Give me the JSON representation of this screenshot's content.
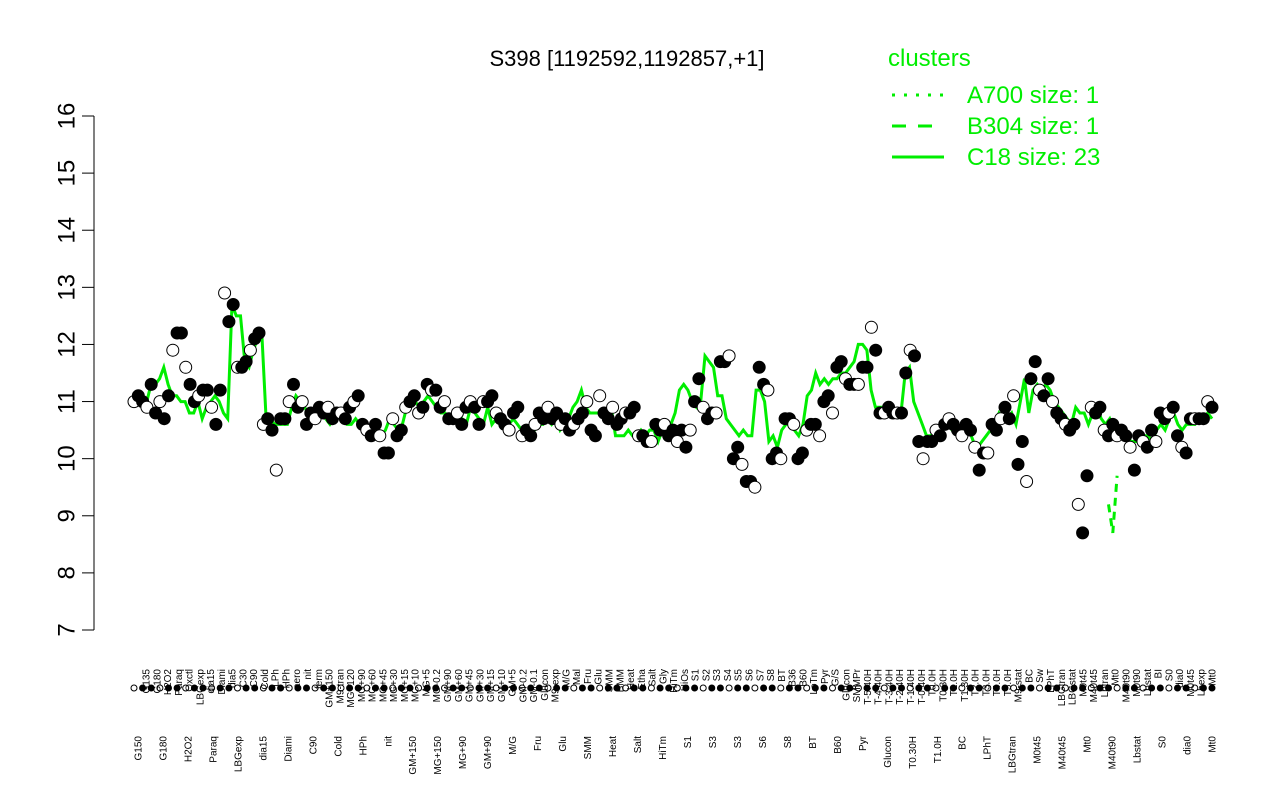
{
  "chart_data": {
    "type": "line",
    "title": "S398 [1192592,1192857,+1]",
    "xlabel": "",
    "ylabel": "",
    "ylim": [
      7,
      16
    ],
    "yticks": [
      7,
      8,
      9,
      10,
      11,
      12,
      13,
      14,
      15,
      16
    ],
    "grid": false,
    "legend": {
      "title": "clusters",
      "placement": "top-right",
      "entries": [
        {
          "label": "A700 size: 1",
          "style": "dotted"
        },
        {
          "label": "B304 size: 1",
          "style": "dashed"
        },
        {
          "label": "C18 size: 23",
          "style": "solid"
        }
      ]
    },
    "x_labels_top": [
      "G135",
      "G180",
      "H2O2",
      "Paraq",
      "Oxctl",
      "LBGexp",
      "dia15",
      "Diami",
      "dia5",
      "C30",
      "C90",
      "Cold",
      "LPh",
      "HPh",
      "aero",
      "nit",
      "ferm",
      "GM+150",
      "M9-tran",
      "MG+120",
      "MG+90",
      "MG+60",
      "MG+45",
      "MG+30",
      "MG+15",
      "MG+10",
      "MG+5",
      "MG-0.2",
      "GM+90",
      "GM+60",
      "GM+45",
      "GM+30",
      "GM+15",
      "GM+10",
      "GM+5",
      "GM-0.2",
      "GM-0.1",
      "Glucon",
      "M9-exp",
      "M/G",
      "Mal",
      "Fru",
      "Glu",
      "SMM",
      "BMM",
      "Heat",
      "Etha",
      "Salt",
      "Gly",
      "HiTm",
      "HiOs",
      "S1",
      "S2",
      "S3",
      "S4",
      "S5",
      "S6",
      "S7",
      "S8",
      "BT",
      "B36",
      "B60",
      "LoTm",
      "Pyr",
      "G/S",
      "Glucon",
      "SMMPr",
      "T-5.40H",
      "T-4.40H",
      "T-3.40H",
      "T-2.40H",
      "T-1.40H",
      "T-0.40H",
      "T0.0H",
      "T0.30H",
      "T1.0H",
      "T1.30H",
      "T2.0H",
      "T3.0H",
      "T4.0H",
      "T5.0H",
      "M9-stat",
      "BC",
      "Sw",
      "LPhT",
      "LBGtran",
      "LBGstat",
      "M0t45",
      "M40t45",
      "Lbtran",
      "Mt0",
      "M40t90",
      "M0t90",
      "Lbstat",
      "BI",
      "S0",
      "dia0",
      "M0t45",
      "Lbexp",
      "Mt0"
    ],
    "x_labels_bottom": [
      "G150",
      "G180",
      "H2O2",
      "Paraq",
      "LBGexp",
      "dia15",
      "Diami",
      "C90",
      "Cold",
      "HPh",
      "nit",
      "GM+150",
      "MG+150",
      "MG+90",
      "GM+90",
      "M/G",
      "Fru",
      "Glu",
      "SMM",
      "Heat",
      "Salt",
      "HiTm",
      "S1",
      "S3",
      "S3",
      "S6",
      "S8",
      "BT",
      "B60",
      "Pyr",
      "Glucon",
      "T0.30H",
      "T1.0H",
      "BC",
      "LPhT",
      "LBGtran",
      "M0t45",
      "M40t45",
      "Mt0",
      "M40t90",
      "Lbstat",
      "S0",
      "dia0",
      "Mt0"
    ],
    "points": [
      11.0,
      11.1,
      11.0,
      10.9,
      11.3,
      10.8,
      11.0,
      10.7,
      11.1,
      11.9,
      12.2,
      12.2,
      11.6,
      11.3,
      11.0,
      11.1,
      11.2,
      11.2,
      10.9,
      10.6,
      11.2,
      12.9,
      12.4,
      12.7,
      11.6,
      11.6,
      11.7,
      11.9,
      12.1,
      12.2,
      10.6,
      10.7,
      10.5,
      9.8,
      10.7,
      10.7,
      11.0,
      11.3,
      10.9,
      11.0,
      10.6,
      10.8,
      10.7,
      10.9,
      10.8,
      10.9,
      10.7,
      10.8,
      10.8,
      10.7,
      10.9,
      11.0,
      11.1,
      10.6,
      10.5,
      10.4,
      10.6,
      10.4,
      10.1,
      10.1,
      10.7,
      10.4,
      10.5,
      10.9,
      11.0,
      11.1,
      10.8,
      10.9,
      11.3,
      11.2,
      11.2,
      10.9,
      11.0,
      10.7,
      10.7,
      10.8,
      10.6,
      10.9,
      11.0,
      10.9,
      10.6,
      11.0,
      11.0,
      11.1,
      10.8,
      10.7,
      10.6,
      10.5,
      10.8,
      10.9,
      10.4,
      10.5,
      10.4,
      10.6,
      10.8,
      10.7,
      10.9,
      10.7,
      10.8,
      10.6,
      10.7,
      10.5,
      10.6,
      10.7,
      10.8,
      11.0,
      10.5,
      10.4,
      11.1,
      10.8,
      10.7,
      10.9,
      10.6,
      10.7,
      10.8,
      10.8,
      10.9,
      10.4,
      10.4,
      10.3,
      10.3,
      10.6,
      10.5,
      10.6,
      10.4,
      10.5,
      10.3,
      10.5,
      10.2,
      10.5,
      11.0,
      11.4,
      10.9,
      10.7,
      10.8,
      10.8,
      11.7,
      11.7,
      11.8,
      10.0,
      10.2,
      9.9,
      9.6,
      9.6,
      9.5,
      11.6,
      11.3,
      11.2,
      10.0,
      10.1,
      10.0,
      10.7,
      10.7,
      10.6,
      10.0,
      10.1,
      10.5,
      10.6,
      10.6,
      10.4,
      11.0,
      11.1,
      10.8,
      11.6,
      11.7,
      11.4,
      11.3,
      11.3,
      11.3,
      11.6,
      11.6,
      12.3,
      11.9,
      10.8,
      10.8,
      10.9,
      10.8,
      10.8,
      10.8,
      11.5,
      11.9,
      11.8,
      10.3,
      10.0,
      10.3,
      10.3,
      10.5,
      10.4,
      10.6,
      10.7,
      10.6,
      10.5,
      10.4,
      10.6,
      10.5,
      10.2,
      9.8,
      10.1,
      10.1,
      10.6,
      10.5,
      10.7,
      10.9,
      10.7,
      11.1,
      9.9,
      10.3,
      9.6,
      11.4,
      11.7,
      11.2,
      11.1,
      11.4,
      11.0,
      10.8,
      10.7,
      10.6,
      10.5,
      10.6,
      9.2,
      8.7,
      9.7,
      10.9,
      10.8,
      10.9,
      10.5,
      10.4,
      10.6,
      10.4,
      10.5,
      10.4,
      10.2,
      9.8,
      10.4,
      10.3,
      10.2,
      10.5,
      10.3,
      10.8,
      10.7,
      10.8,
      10.9,
      10.4,
      10.2,
      10.1,
      10.7,
      10.7,
      10.7,
      10.7,
      11.0,
      10.9
    ],
    "line_solid": [
      11.0,
      11.1,
      11.0,
      11.0,
      11.3,
      11.3,
      11.4,
      11.6,
      11.3,
      11.1,
      11.1,
      11.0,
      11.0,
      10.8,
      10.8,
      11.0,
      10.7,
      10.9,
      11.0,
      11.1,
      11.0,
      10.8,
      10.7,
      12.7,
      12.5,
      12.5,
      11.7,
      11.6,
      11.9,
      12.1,
      12.2,
      10.7,
      10.7,
      10.6,
      10.6,
      10.6,
      10.6,
      10.9,
      11.1,
      11.0,
      10.9,
      10.8,
      10.8,
      10.9,
      10.8,
      10.7,
      10.6,
      10.7,
      10.8,
      10.7,
      10.6,
      10.6,
      10.7,
      10.6,
      10.5,
      10.4,
      10.6,
      10.5,
      10.4,
      10.5,
      10.7,
      10.6,
      10.5,
      10.6,
      10.9,
      11.0,
      11.0,
      10.9,
      11.0,
      11.1,
      11.0,
      10.9,
      10.8,
      10.8,
      10.7,
      10.8,
      10.7,
      10.7,
      10.6,
      10.9,
      10.8,
      10.7,
      10.6,
      10.9,
      10.6,
      10.7,
      10.6,
      10.5,
      10.6,
      10.7,
      10.6,
      10.5,
      10.4,
      10.5,
      10.5,
      10.6,
      10.6,
      10.7,
      10.6,
      10.7,
      10.5,
      10.6,
      10.7,
      10.9,
      11.0,
      11.2,
      10.9,
      10.8,
      10.8,
      10.8,
      10.8,
      10.8,
      10.9,
      10.4,
      10.4,
      10.4,
      10.5,
      10.4,
      10.4,
      10.5,
      10.4,
      10.5,
      10.5,
      10.3,
      10.5,
      10.5,
      10.6,
      10.8,
      11.2,
      11.3,
      11.2,
      11.0,
      10.9,
      11.0,
      11.8,
      11.7,
      11.6,
      11.1,
      11.1,
      10.7,
      10.6,
      10.5,
      10.4,
      10.5,
      10.4,
      10.4,
      11.2,
      11.2,
      11.0,
      10.3,
      10.4,
      10.2,
      10.5,
      10.6,
      10.6,
      10.5,
      10.4,
      10.6,
      11.1,
      11.2,
      11.5,
      11.3,
      11.4,
      11.3,
      11.4,
      11.4,
      11.5,
      11.5,
      11.6,
      11.7,
      12.0,
      12.0,
      11.9,
      11.2,
      10.9,
      10.9,
      10.9,
      10.9,
      10.8,
      10.8,
      10.8,
      11.5,
      11.6,
      11.0,
      10.8,
      10.6,
      10.4,
      10.4,
      10.5,
      10.4,
      10.6,
      10.6,
      10.5,
      10.5,
      10.4,
      10.4,
      10.5,
      10.3,
      10.2,
      10.3,
      10.4,
      10.5,
      10.6,
      10.8,
      10.7,
      10.7,
      10.8,
      10.6,
      11.0,
      11.4,
      10.8,
      11.2,
      11.3,
      11.2,
      11.3,
      11.2,
      11.0,
      10.9,
      10.8,
      10.7,
      10.6,
      10.9,
      10.8,
      10.8,
      10.6,
      10.8,
      10.9,
      10.7,
      10.6,
      10.7,
      10.5,
      10.5,
      10.4,
      10.4,
      10.3,
      10.3,
      10.3,
      10.4,
      10.4,
      10.3,
      10.5,
      10.6,
      10.5,
      10.7,
      10.8,
      10.6,
      10.5,
      10.6,
      10.6,
      10.6,
      10.7,
      10.7,
      10.8,
      10.7
    ],
    "line_dashed": [
      9.2,
      8.7,
      9.7
    ],
    "colors": {
      "line": "#00ee00",
      "point_open": "#ffffff",
      "point_filled": "#000000",
      "axis": "#000000"
    }
  }
}
